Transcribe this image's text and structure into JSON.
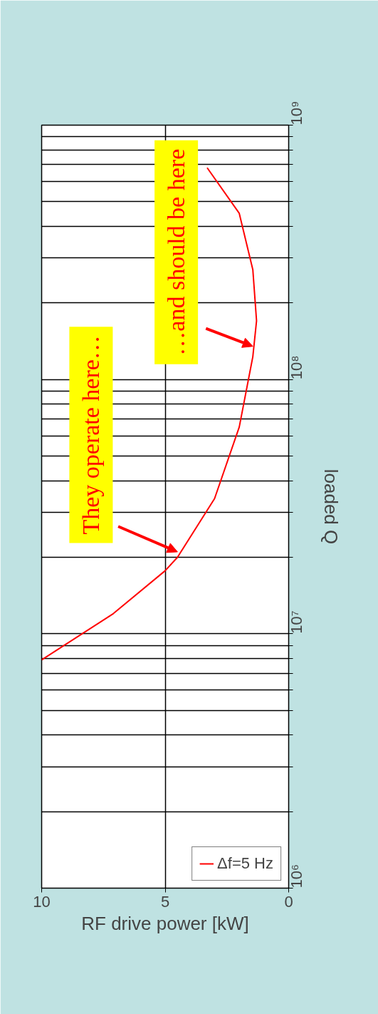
{
  "chart_data": {
    "type": "line",
    "xlabel": "RF drive power [kW]",
    "ylabel": "loaded Q",
    "log": "y",
    "ylim": [
      1000000,
      1000000000
    ],
    "yticks": [
      {
        "value": 1000000,
        "label": "10⁶"
      },
      {
        "value": 2000000,
        "label": null
      },
      {
        "value": 3000000,
        "label": null
      },
      {
        "value": 4000000,
        "label": null
      },
      {
        "value": 5000000,
        "label": null
      },
      {
        "value": 6000000,
        "label": null
      },
      {
        "value": 7000000,
        "label": null
      },
      {
        "value": 8000000,
        "label": null
      },
      {
        "value": 9000000,
        "label": null
      },
      {
        "value": 10000000,
        "label": "10⁷"
      },
      {
        "value": 20000000,
        "label": null
      },
      {
        "value": 30000000,
        "label": null
      },
      {
        "value": 40000000,
        "label": null
      },
      {
        "value": 50000000,
        "label": null
      },
      {
        "value": 60000000,
        "label": null
      },
      {
        "value": 70000000,
        "label": null
      },
      {
        "value": 80000000,
        "label": null
      },
      {
        "value": 90000000,
        "label": null
      },
      {
        "value": 100000000,
        "label": "10⁸"
      },
      {
        "value": 200000000,
        "label": null
      },
      {
        "value": 300000000,
        "label": null
      },
      {
        "value": 400000000,
        "label": null
      },
      {
        "value": 500000000,
        "label": null
      },
      {
        "value": 600000000,
        "label": null
      },
      {
        "value": 700000000,
        "label": null
      },
      {
        "value": 800000000,
        "label": null
      },
      {
        "value": 900000000,
        "label": null
      },
      {
        "value": 1000000000,
        "label": "10⁹"
      }
    ],
    "xlim": [
      10,
      0
    ],
    "xticks": [
      10,
      5,
      0
    ],
    "grid": true,
    "legend": "bottom right",
    "series": [
      {
        "name": "Δf=5 Hz",
        "color": "#ff0000",
        "x": [
          10,
          7.1,
          5.0,
          4.5,
          3.0,
          2.0,
          1.45,
          1.3,
          1.45,
          2.0,
          3.3
        ],
        "values": [
          7900000,
          12000000,
          17700000,
          20000000,
          34000000,
          65000000,
          123000000,
          170000000,
          270000000,
          450000000,
          680000000
        ]
      }
    ],
    "annotations": [
      {
        "text": "They operate here…",
        "x": 4.5,
        "y": 21000000
      },
      {
        "text": "…and should be here",
        "x": 1.45,
        "y": 135000000
      }
    ]
  }
}
